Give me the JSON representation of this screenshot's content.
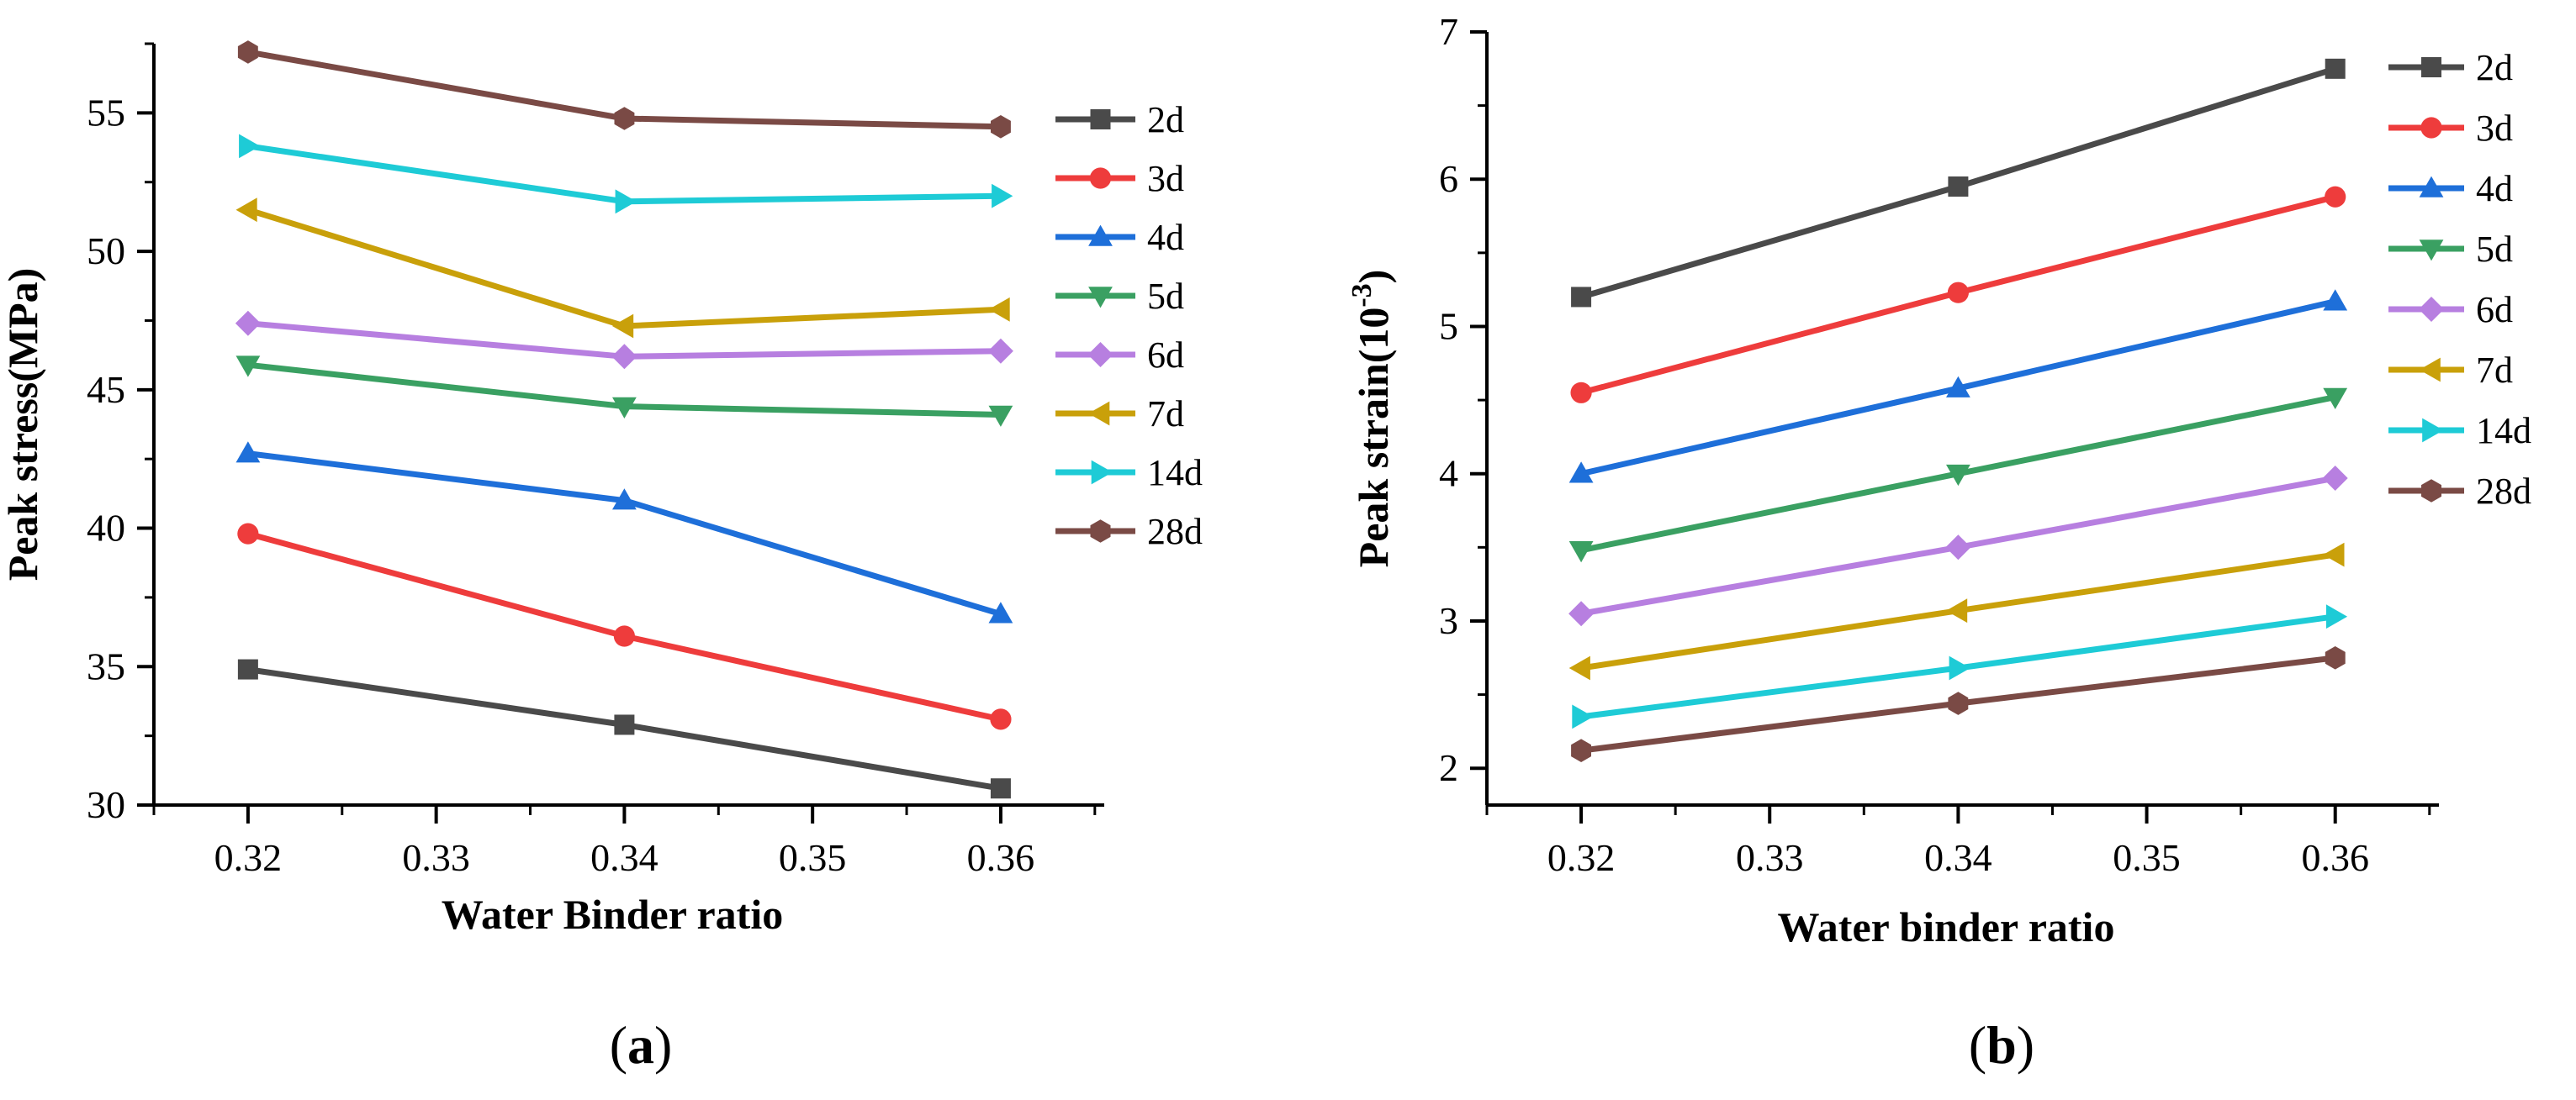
{
  "chart_data": [
    {
      "type": "line",
      "panel_label": "a",
      "title": "",
      "xlabel": "Water Binder ratio",
      "ylabel": "Peak stress(MPa)",
      "x": [
        0.32,
        0.34,
        0.36
      ],
      "xlim": [
        0.315,
        0.3655
      ],
      "ylim": [
        30,
        57.5
      ],
      "xticks": [
        0.32,
        0.33,
        0.34,
        0.35,
        0.36
      ],
      "xtick_labels": [
        "0.32",
        "0.33",
        "0.34",
        "0.35",
        "0.36"
      ],
      "yticks": [
        30,
        35,
        40,
        45,
        50,
        55
      ],
      "ytick_labels": [
        "30",
        "35",
        "40",
        "45",
        "50",
        "55"
      ],
      "legend_position": "right",
      "grid": false,
      "series": [
        {
          "name": "2d",
          "values": [
            34.9,
            32.9,
            30.6
          ],
          "color": "#4a4a4a",
          "marker": "square"
        },
        {
          "name": "3d",
          "values": [
            39.8,
            36.1,
            33.1
          ],
          "color": "#ee3c3c",
          "marker": "circle"
        },
        {
          "name": "4d",
          "values": [
            42.7,
            41.0,
            36.9
          ],
          "color": "#1e6fd9",
          "marker": "triangle-up"
        },
        {
          "name": "5d",
          "values": [
            45.9,
            44.4,
            44.1
          ],
          "color": "#3aa062",
          "marker": "triangle-down"
        },
        {
          "name": "6d",
          "values": [
            47.4,
            46.2,
            46.4
          ],
          "color": "#b77fe0",
          "marker": "diamond"
        },
        {
          "name": "7d",
          "values": [
            51.5,
            47.3,
            47.9
          ],
          "color": "#c9a00a",
          "marker": "triangle-left"
        },
        {
          "name": "14d",
          "values": [
            53.8,
            51.8,
            52.0
          ],
          "color": "#1ecbd6",
          "marker": "triangle-right"
        },
        {
          "name": "28d",
          "values": [
            57.2,
            54.8,
            54.5
          ],
          "color": "#7a4a45",
          "marker": "hexagon"
        }
      ]
    },
    {
      "type": "line",
      "panel_label": "b",
      "title": "",
      "xlabel": "Water binder ratio",
      "ylabel": "Peak strain(10",
      "ylabel_sup": "-3",
      "ylabel_end": ")",
      "x": [
        0.32,
        0.34,
        0.36
      ],
      "xlim": [
        0.315,
        0.3655
      ],
      "ylim": [
        1.75,
        7
      ],
      "xticks": [
        0.32,
        0.33,
        0.34,
        0.35,
        0.36
      ],
      "xtick_labels": [
        "0.32",
        "0.33",
        "0.34",
        "0.35",
        "0.36"
      ],
      "yticks": [
        2,
        3,
        4,
        5,
        6,
        7
      ],
      "ytick_labels": [
        "2",
        "3",
        "4",
        "5",
        "6",
        "7"
      ],
      "legend_position": "right",
      "grid": false,
      "series": [
        {
          "name": "2d",
          "values": [
            5.2,
            5.95,
            6.75
          ],
          "color": "#4a4a4a",
          "marker": "square"
        },
        {
          "name": "3d",
          "values": [
            4.55,
            5.23,
            5.88
          ],
          "color": "#ee3c3c",
          "marker": "circle"
        },
        {
          "name": "4d",
          "values": [
            4.0,
            4.58,
            5.17
          ],
          "color": "#1e6fd9",
          "marker": "triangle-up"
        },
        {
          "name": "5d",
          "values": [
            3.48,
            4.0,
            4.52
          ],
          "color": "#3aa062",
          "marker": "triangle-down"
        },
        {
          "name": "6d",
          "values": [
            3.05,
            3.5,
            3.97
          ],
          "color": "#b77fe0",
          "marker": "diamond"
        },
        {
          "name": "7d",
          "values": [
            2.68,
            3.07,
            3.45
          ],
          "color": "#c9a00a",
          "marker": "triangle-left"
        },
        {
          "name": "14d",
          "values": [
            2.35,
            2.68,
            3.03
          ],
          "color": "#1ecbd6",
          "marker": "triangle-right"
        },
        {
          "name": "28d",
          "values": [
            2.12,
            2.44,
            2.75
          ],
          "color": "#7a4a45",
          "marker": "hexagon"
        }
      ]
    }
  ]
}
